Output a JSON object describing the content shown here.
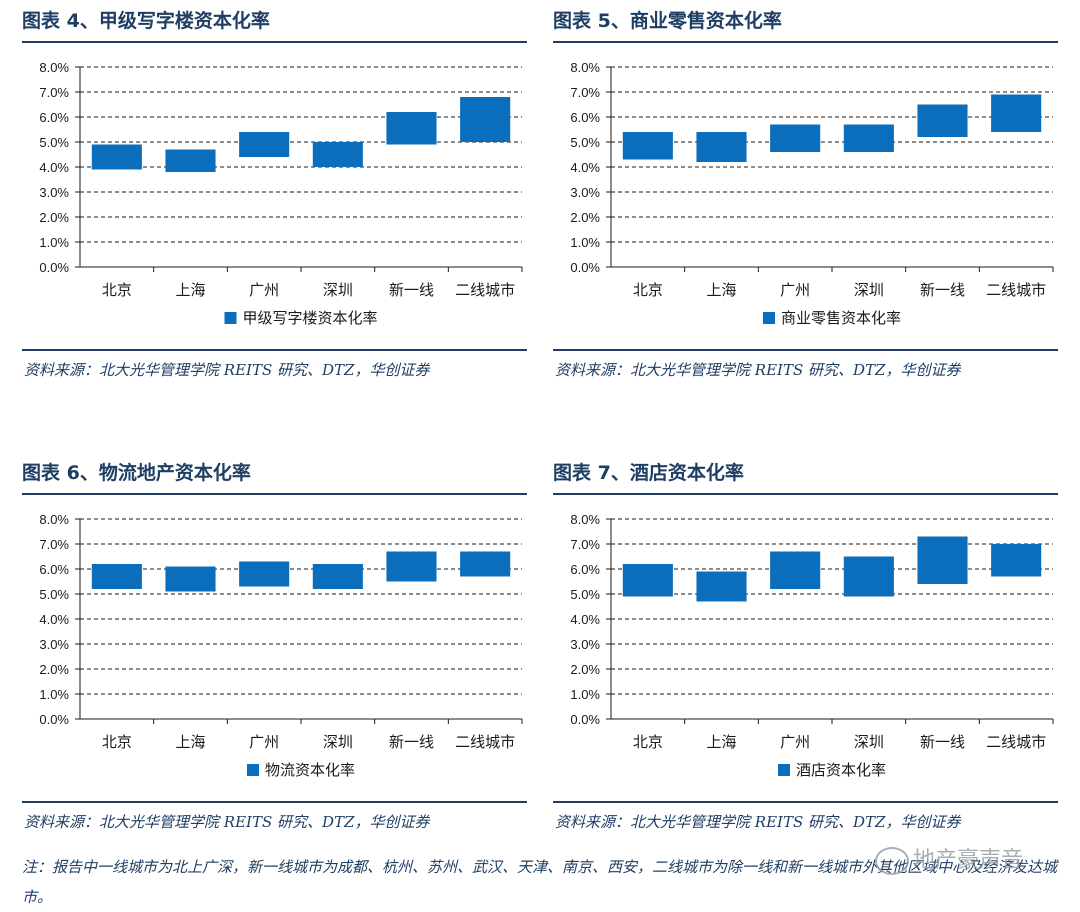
{
  "footnote": "注：报告中一线城市为北上广深，新一线城市为成都、杭州、苏州、武汉、天津、南京、西安，二线城市为除一线和新一线城市外其他区域中心及经济发达城市。",
  "watermark": "地产豪声音",
  "colors": {
    "bar": "#0a6ebd",
    "title": "#1f3e63"
  },
  "chart_data": [
    {
      "type": "bar",
      "title": "图表 4、甲级写字楼资本化率",
      "source": "资料来源：北大光华管理学院 REITS 研究、DTZ，华创证券",
      "legend": "甲级写字楼资本化率",
      "categories": [
        "北京",
        "上海",
        "广州",
        "深圳",
        "新一线",
        "二线城市"
      ],
      "ranges": [
        [
          3.9,
          4.9
        ],
        [
          3.8,
          4.7
        ],
        [
          4.4,
          5.4
        ],
        [
          4.0,
          5.0
        ],
        [
          4.9,
          6.2
        ],
        [
          5.0,
          6.8
        ]
      ],
      "ylim": [
        0,
        8
      ],
      "yticks": [
        "0.0%",
        "1.0%",
        "2.0%",
        "3.0%",
        "4.0%",
        "5.0%",
        "6.0%",
        "7.0%",
        "8.0%"
      ],
      "grid": true
    },
    {
      "type": "bar",
      "title": "图表 5、商业零售资本化率",
      "source": "资料来源：北大光华管理学院 REITS 研究、DTZ，华创证券",
      "legend": "商业零售资本化率",
      "categories": [
        "北京",
        "上海",
        "广州",
        "深圳",
        "新一线",
        "二线城市"
      ],
      "ranges": [
        [
          4.3,
          5.4
        ],
        [
          4.2,
          5.4
        ],
        [
          4.6,
          5.7
        ],
        [
          4.6,
          5.7
        ],
        [
          5.2,
          6.5
        ],
        [
          5.4,
          6.9
        ]
      ],
      "ylim": [
        0,
        8
      ],
      "yticks": [
        "0.0%",
        "1.0%",
        "2.0%",
        "3.0%",
        "4.0%",
        "5.0%",
        "6.0%",
        "7.0%",
        "8.0%"
      ],
      "grid": true
    },
    {
      "type": "bar",
      "title": "图表 6、物流地产资本化率",
      "source": "资料来源：北大光华管理学院 REITS 研究、DTZ，华创证券",
      "legend": "物流资本化率",
      "categories": [
        "北京",
        "上海",
        "广州",
        "深圳",
        "新一线",
        "二线城市"
      ],
      "ranges": [
        [
          5.2,
          6.2
        ],
        [
          5.1,
          6.1
        ],
        [
          5.3,
          6.3
        ],
        [
          5.2,
          6.2
        ],
        [
          5.5,
          6.7
        ],
        [
          5.7,
          6.7
        ]
      ],
      "ylim": [
        0,
        8
      ],
      "yticks": [
        "0.0%",
        "1.0%",
        "2.0%",
        "3.0%",
        "4.0%",
        "5.0%",
        "6.0%",
        "7.0%",
        "8.0%"
      ],
      "grid": true
    },
    {
      "type": "bar",
      "title": "图表 7、酒店资本化率",
      "source": "资料来源：北大光华管理学院 REITS 研究、DTZ，华创证券",
      "legend": "酒店资本化率",
      "categories": [
        "北京",
        "上海",
        "广州",
        "深圳",
        "新一线",
        "二线城市"
      ],
      "ranges": [
        [
          4.9,
          6.2
        ],
        [
          4.7,
          5.9
        ],
        [
          5.2,
          6.7
        ],
        [
          4.9,
          6.5
        ],
        [
          5.4,
          7.3
        ],
        [
          5.7,
          7.0
        ]
      ],
      "ylim": [
        0,
        8
      ],
      "yticks": [
        "0.0%",
        "1.0%",
        "2.0%",
        "3.0%",
        "4.0%",
        "5.0%",
        "6.0%",
        "7.0%",
        "8.0%"
      ],
      "grid": true
    }
  ]
}
